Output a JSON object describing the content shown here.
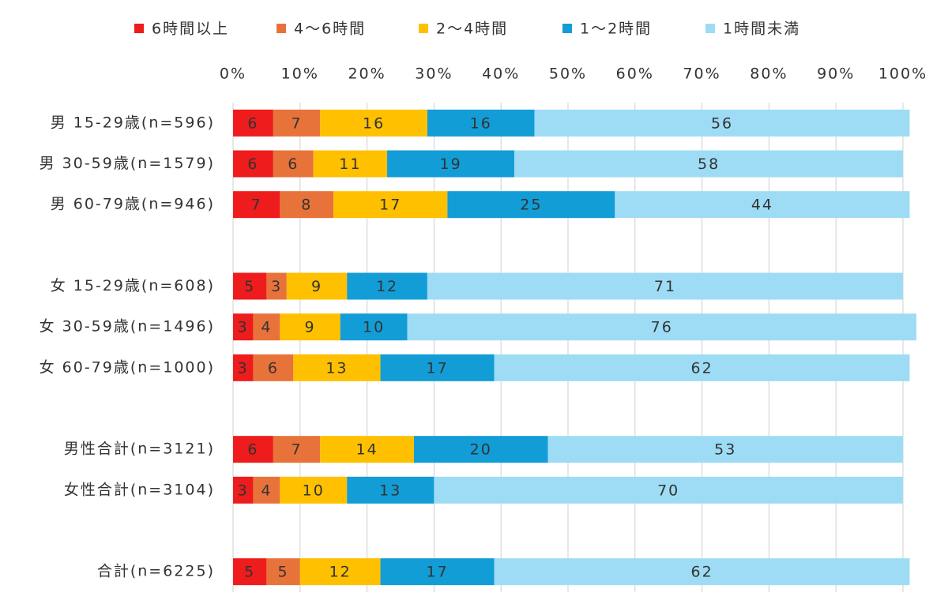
{
  "chart_data": {
    "type": "stacked-barh",
    "categories": [
      "男 15-29歳(n=596)",
      "男 30-59歳(n=1579)",
      "男 60-79歳(n=946)",
      null,
      "女 15-29歳(n=608)",
      "女 30-59歳(n=1496)",
      "女 60-79歳(n=1000)",
      null,
      "男性合計(n=3121)",
      "女性合計(n=3104)",
      null,
      "合計(n=6225)"
    ],
    "series": [
      {
        "name": "6時間以上",
        "color": "#ee1c1c",
        "values": [
          6,
          6,
          7,
          null,
          5,
          3,
          3,
          null,
          6,
          3,
          null,
          5
        ]
      },
      {
        "name": "4〜6時間",
        "color": "#e8733a",
        "values": [
          7,
          6,
          8,
          null,
          3,
          4,
          6,
          null,
          7,
          4,
          null,
          5
        ]
      },
      {
        "name": "2〜4時間",
        "color": "#ffc000",
        "values": [
          16,
          11,
          17,
          null,
          9,
          9,
          13,
          null,
          14,
          10,
          null,
          12
        ]
      },
      {
        "name": "1〜2時間",
        "color": "#139dd6",
        "values": [
          16,
          19,
          25,
          null,
          12,
          10,
          17,
          null,
          20,
          13,
          null,
          17
        ]
      },
      {
        "name": "1時間未満",
        "color": "#9edcf5",
        "values": [
          56,
          58,
          44,
          null,
          71,
          76,
          62,
          null,
          53,
          70,
          null,
          62
        ]
      }
    ],
    "xlim": [
      0,
      100
    ],
    "xticks": [
      {
        "value": 0,
        "label": "0%"
      },
      {
        "value": 10,
        "label": "10%"
      },
      {
        "value": 20,
        "label": "20%"
      },
      {
        "value": 30,
        "label": "30%"
      },
      {
        "value": 40,
        "label": "40%"
      },
      {
        "value": 50,
        "label": "50%"
      },
      {
        "value": 60,
        "label": "60%"
      },
      {
        "value": 70,
        "label": "70%"
      },
      {
        "value": 80,
        "label": "80%"
      },
      {
        "value": 90,
        "label": "90%"
      },
      {
        "value": 100,
        "label": "100%"
      }
    ],
    "grid": true,
    "legend": "top"
  }
}
